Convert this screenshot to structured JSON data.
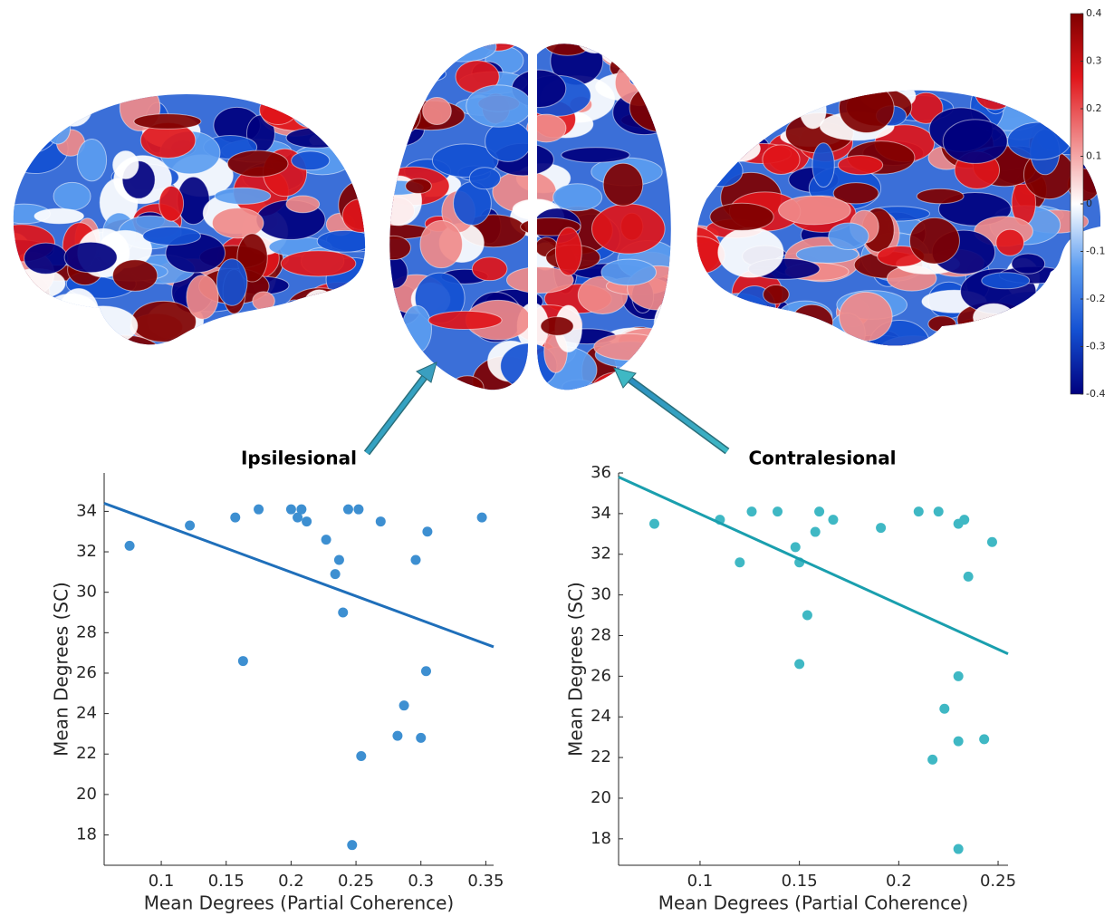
{
  "chart_data": [
    {
      "type": "colorbar",
      "colors": [
        "#00007f",
        "#1450d2",
        "#5b9cf0",
        "#ffffff",
        "#f08a8a",
        "#e0151a",
        "#7f0000"
      ],
      "ylim": [
        -0.4,
        0.4
      ],
      "yticks": [
        0.4,
        0.3,
        0.2,
        0.1,
        0,
        -0.1,
        -0.2,
        -0.3,
        -0.4
      ]
    },
    {
      "type": "scatter",
      "title": "Ipsilesional",
      "xlabel": "Mean Degrees (Partial Coherence)",
      "ylabel": "Mean Degrees (SC)",
      "xlim": [
        0.056,
        0.356
      ],
      "xticks": [
        0.1,
        0.15,
        0.2,
        0.25,
        0.3,
        0.35
      ],
      "ylim": [
        16.5,
        35.9
      ],
      "yticks": [
        18,
        20,
        22,
        24,
        26,
        28,
        30,
        32,
        34
      ],
      "points": {
        "color": "#3d8fd1",
        "x": [
          0.0756,
          0.122,
          0.157,
          0.175,
          0.2,
          0.205,
          0.208,
          0.212,
          0.244,
          0.252,
          0.269,
          0.305,
          0.347,
          0.227,
          0.237,
          0.234,
          0.296,
          0.24,
          0.163,
          0.304,
          0.287,
          0.282,
          0.3,
          0.254,
          0.247
        ],
        "values": [
          32.3,
          33.3,
          33.7,
          34.1,
          34.1,
          33.7,
          34.1,
          33.5,
          34.1,
          34.1,
          33.5,
          33.0,
          33.7,
          32.6,
          31.6,
          30.9,
          31.6,
          29.0,
          26.6,
          26.1,
          24.4,
          22.9,
          22.8,
          21.9,
          17.5
        ]
      },
      "fit_line": {
        "color": "#1f6fba",
        "x": [
          0.056,
          0.356
        ],
        "values": [
          34.4,
          27.3
        ]
      }
    },
    {
      "type": "scatter",
      "title": "Contralesional",
      "xlabel": "Mean Degrees (Partial Coherence)",
      "ylabel": "Mean Degrees (SC)",
      "xlim": [
        0.059,
        0.255
      ],
      "xticks": [
        0.1,
        0.15,
        0.2,
        0.25
      ],
      "ylim": [
        16.7,
        36
      ],
      "yticks": [
        18,
        20,
        22,
        24,
        26,
        28,
        30,
        32,
        34,
        36
      ],
      "points": {
        "color": "#3fb8c4",
        "x": [
          0.077,
          0.11,
          0.12,
          0.126,
          0.139,
          0.148,
          0.15,
          0.15,
          0.154,
          0.158,
          0.16,
          0.167,
          0.191,
          0.21,
          0.22,
          0.23,
          0.233,
          0.247,
          0.235,
          0.23,
          0.223,
          0.217,
          0.23,
          0.243,
          0.23
        ],
        "values": [
          33.5,
          33.7,
          31.6,
          34.1,
          34.1,
          32.35,
          31.6,
          26.6,
          29.0,
          33.1,
          34.1,
          33.7,
          33.3,
          34.1,
          34.1,
          33.5,
          33.7,
          32.6,
          30.9,
          26.0,
          24.4,
          21.9,
          22.8,
          22.9,
          17.5
        ]
      },
      "fit_line": {
        "color": "#1a9fae",
        "x": [
          0.059,
          0.255
        ],
        "values": [
          35.8,
          27.1
        ]
      }
    }
  ]
}
